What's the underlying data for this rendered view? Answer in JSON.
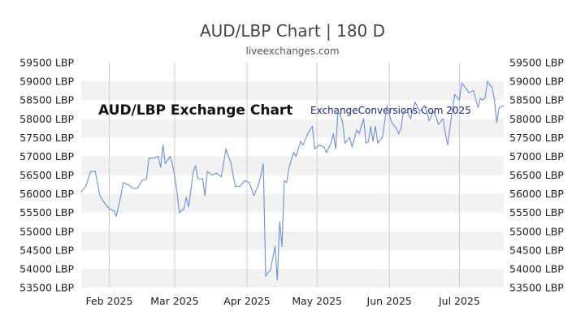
{
  "chart_data": {
    "type": "line",
    "title": "AUD/LBP Chart | 180 D",
    "subtitle": "liveexchanges.com",
    "watermark_left": "AUD/LBP Exchange Chart",
    "watermark_right": "ExchangeConversions.Com 2025",
    "y_tick_labels": [
      "59500 LBP",
      "59000 LBP",
      "58500 LBP",
      "58000 LBP",
      "57500 LBP",
      "57000 LBP",
      "56500 LBP",
      "56000 LBP",
      "55500 LBP",
      "55000 LBP",
      "54500 LBP",
      "54000 LBP",
      "53500 LBP"
    ],
    "y_ticks": [
      59500,
      59000,
      58500,
      58000,
      57500,
      57000,
      56500,
      56000,
      55500,
      55000,
      54500,
      54000,
      53500
    ],
    "ylim": [
      53500,
      59500
    ],
    "x_tick_labels": [
      "Feb 2025",
      "Mar 2025",
      "Apr 2025",
      "May 2025",
      "Jun 2025",
      "Jul 2025"
    ],
    "x_tick_dates": [
      "2025-02-01",
      "2025-03-01",
      "2025-04-01",
      "2025-05-01",
      "2025-06-01",
      "2025-07-01"
    ],
    "xlim": [
      "2025-01-20",
      "2025-07-20"
    ],
    "grid": "horizontal bands and vertical month lines",
    "line_color": "#6f8fd8",
    "series": [
      {
        "values": [
          [
            "2025-01-20",
            56050
          ],
          [
            "2025-01-22",
            56200
          ],
          [
            "2025-01-24",
            56600
          ],
          [
            "2025-01-26",
            56600
          ],
          [
            "2025-01-28",
            55950
          ],
          [
            "2025-01-30",
            55750
          ],
          [
            "2025-02-01",
            55600
          ],
          [
            "2025-02-03",
            55550
          ],
          [
            "2025-02-04",
            55400
          ],
          [
            "2025-02-06",
            55950
          ],
          [
            "2025-02-07",
            56300
          ],
          [
            "2025-02-09",
            56250
          ],
          [
            "2025-02-11",
            56150
          ],
          [
            "2025-02-13",
            56150
          ],
          [
            "2025-02-15",
            56350
          ],
          [
            "2025-02-17",
            56400
          ],
          [
            "2025-02-18",
            56950
          ],
          [
            "2025-02-20",
            56950
          ],
          [
            "2025-02-22",
            57000
          ],
          [
            "2025-02-23",
            56700
          ],
          [
            "2025-02-24",
            57300
          ],
          [
            "2025-02-25",
            56800
          ],
          [
            "2025-02-27",
            57000
          ],
          [
            "2025-02-28",
            56800
          ],
          [
            "2025-03-01",
            56500
          ],
          [
            "2025-03-02",
            56050
          ],
          [
            "2025-03-03",
            55500
          ],
          [
            "2025-03-05",
            55600
          ],
          [
            "2025-03-06",
            55900
          ],
          [
            "2025-03-07",
            55650
          ],
          [
            "2025-03-09",
            56600
          ],
          [
            "2025-03-10",
            56750
          ],
          [
            "2025-03-11",
            56400
          ],
          [
            "2025-03-13",
            56400
          ],
          [
            "2025-03-14",
            55950
          ],
          [
            "2025-03-15",
            56600
          ],
          [
            "2025-03-17",
            56500
          ],
          [
            "2025-03-19",
            56550
          ],
          [
            "2025-03-21",
            56450
          ],
          [
            "2025-03-23",
            57200
          ],
          [
            "2025-03-24",
            57000
          ],
          [
            "2025-03-25",
            56850
          ],
          [
            "2025-03-27",
            56200
          ],
          [
            "2025-03-29",
            56200
          ],
          [
            "2025-03-31",
            56350
          ],
          [
            "2025-04-02",
            56300
          ],
          [
            "2025-04-04",
            55950
          ],
          [
            "2025-04-06",
            56250
          ],
          [
            "2025-04-07",
            56500
          ],
          [
            "2025-04-08",
            56800
          ],
          [
            "2025-04-09",
            53800
          ],
          [
            "2025-04-10",
            53900
          ],
          [
            "2025-04-11",
            53950
          ],
          [
            "2025-04-13",
            54600
          ],
          [
            "2025-04-14",
            53700
          ],
          [
            "2025-04-15",
            55250
          ],
          [
            "2025-04-16",
            54600
          ],
          [
            "2025-04-17",
            56350
          ],
          [
            "2025-04-18",
            56300
          ],
          [
            "2025-04-19",
            56700
          ],
          [
            "2025-04-21",
            57100
          ],
          [
            "2025-04-22",
            57000
          ],
          [
            "2025-04-24",
            57400
          ],
          [
            "2025-04-25",
            57300
          ],
          [
            "2025-04-27",
            57600
          ],
          [
            "2025-04-29",
            57800
          ],
          [
            "2025-04-30",
            57200
          ],
          [
            "2025-05-02",
            57300
          ],
          [
            "2025-05-04",
            57250
          ],
          [
            "2025-05-05",
            57100
          ],
          [
            "2025-05-07",
            57350
          ],
          [
            "2025-05-08",
            57600
          ],
          [
            "2025-05-09",
            57200
          ],
          [
            "2025-05-10",
            58200
          ],
          [
            "2025-05-11",
            58100
          ],
          [
            "2025-05-12",
            57900
          ],
          [
            "2025-05-13",
            57350
          ],
          [
            "2025-05-15",
            57500
          ],
          [
            "2025-05-16",
            57250
          ],
          [
            "2025-05-18",
            57700
          ],
          [
            "2025-05-19",
            57600
          ],
          [
            "2025-05-21",
            58000
          ],
          [
            "2025-05-22",
            57350
          ],
          [
            "2025-05-23",
            57400
          ],
          [
            "2025-05-24",
            57800
          ],
          [
            "2025-05-25",
            57400
          ],
          [
            "2025-05-26",
            57800
          ],
          [
            "2025-05-27",
            57350
          ],
          [
            "2025-05-29",
            57500
          ],
          [
            "2025-05-31",
            58350
          ],
          [
            "2025-06-01",
            58100
          ],
          [
            "2025-06-02",
            57900
          ],
          [
            "2025-06-04",
            57750
          ],
          [
            "2025-06-05",
            57600
          ],
          [
            "2025-06-06",
            57750
          ],
          [
            "2025-06-07",
            58200
          ],
          [
            "2025-06-09",
            58150
          ],
          [
            "2025-06-10",
            58000
          ],
          [
            "2025-06-12",
            58450
          ],
          [
            "2025-06-14",
            58200
          ],
          [
            "2025-06-16",
            58350
          ],
          [
            "2025-06-17",
            58200
          ],
          [
            "2025-06-18",
            57950
          ],
          [
            "2025-06-20",
            58200
          ],
          [
            "2025-06-21",
            58050
          ],
          [
            "2025-06-22",
            57850
          ],
          [
            "2025-06-24",
            58000
          ],
          [
            "2025-06-25",
            57600
          ],
          [
            "2025-06-26",
            57300
          ],
          [
            "2025-06-28",
            58250
          ],
          [
            "2025-06-29",
            58650
          ],
          [
            "2025-07-01",
            58500
          ],
          [
            "2025-07-02",
            58950
          ],
          [
            "2025-07-04",
            58800
          ],
          [
            "2025-07-05",
            58700
          ],
          [
            "2025-07-07",
            58750
          ],
          [
            "2025-07-09",
            58300
          ],
          [
            "2025-07-10",
            58550
          ],
          [
            "2025-07-11",
            58500
          ],
          [
            "2025-07-12",
            58550
          ],
          [
            "2025-07-13",
            59000
          ],
          [
            "2025-07-14",
            58900
          ],
          [
            "2025-07-15",
            58850
          ],
          [
            "2025-07-16",
            58500
          ],
          [
            "2025-07-17",
            57900
          ],
          [
            "2025-07-18",
            58300
          ],
          [
            "2025-07-20",
            58350
          ]
        ]
      }
    ]
  }
}
